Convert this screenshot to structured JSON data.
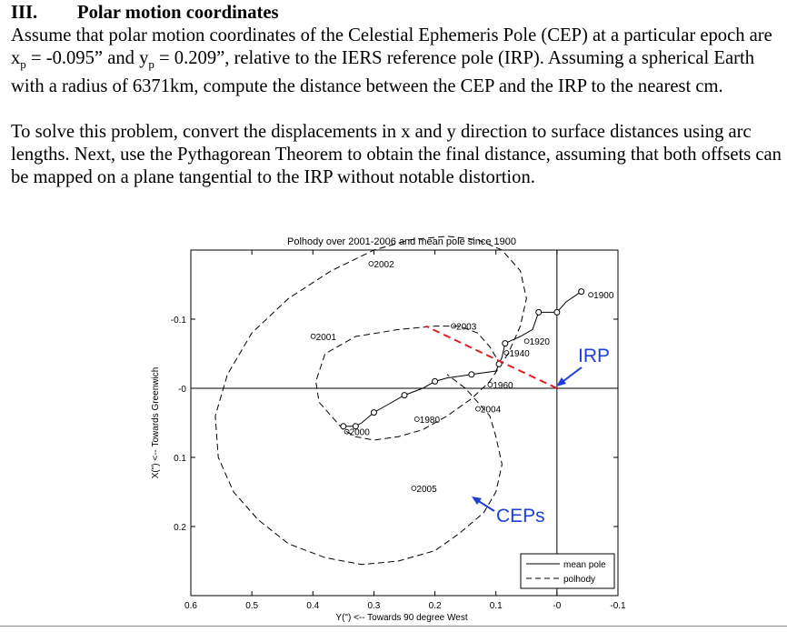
{
  "section": {
    "number": "III.",
    "title": "Polar motion coordinates"
  },
  "paragraph1": {
    "p1": "Assume that polar motion coordinates of the Celestial Ephemeris Pole (CEP) at a particular epoch are x",
    "sub1": "p",
    "p2": " = -0.095” and y",
    "sub2": "p",
    "p3": " = 0.209”, relative to the IERS reference pole (IRP). Assuming a spherical Earth with a radius of 6371km, compute the distance between the CEP and the IRP to the nearest cm."
  },
  "paragraph2": "To solve this problem, convert the displacements in x and y direction to surface distances using arc lengths. Next, use the Pythagorean Theorem to obtain the final distance, assuming that both offsets can be mapped on a plane tangential to the IRP without notable distortion.",
  "chart_data": {
    "type": "line",
    "title": "Polhody over 2001-2006 and mean pole since 1900",
    "xlabel": "Y(\") <-- Towards 90 degree West",
    "ylabel": "X(\") <-- Towards Greenwich",
    "xlim": [
      0.6,
      -0.1
    ],
    "ylim": [
      -0.2,
      0.3
    ],
    "x_tick_labels": [
      "0.6",
      "0.5",
      "0.4",
      "0.3",
      "0.2",
      "0.1",
      "-0",
      "-0.1"
    ],
    "x_tick_values": [
      0.6,
      0.5,
      0.4,
      0.3,
      0.2,
      0.1,
      0.0,
      -0.1
    ],
    "y_tick_labels": [
      "-0.1",
      "-0",
      "0.1",
      "0.2"
    ],
    "y_tick_values": [
      -0.1,
      0.0,
      0.1,
      0.2
    ],
    "grid": false,
    "legend": {
      "position": "bottom-right",
      "entries": [
        "mean pole",
        "polhody"
      ]
    },
    "series": [
      {
        "name": "mean pole",
        "style": "solid",
        "x": [
          -0.04,
          -0.015,
          0.0,
          0.03,
          0.04,
          0.06,
          0.085,
          0.09,
          0.095,
          0.1,
          0.14,
          0.18,
          0.2,
          0.22,
          0.25,
          0.28,
          0.3,
          0.32,
          0.33,
          0.35
        ],
        "y": [
          -0.14,
          -0.125,
          -0.11,
          -0.11,
          -0.085,
          -0.075,
          -0.065,
          -0.045,
          -0.035,
          -0.025,
          -0.02,
          -0.015,
          -0.01,
          0.0,
          0.01,
          0.025,
          0.035,
          0.05,
          0.055,
          0.055
        ],
        "markers_x": [
          -0.04,
          0.0,
          0.03,
          0.085,
          0.095,
          0.14,
          0.2,
          0.25,
          0.3,
          0.33,
          0.35
        ],
        "markers_y": [
          -0.14,
          -0.11,
          -0.11,
          -0.065,
          -0.035,
          -0.02,
          -0.01,
          0.01,
          0.035,
          0.055,
          0.055
        ]
      },
      {
        "name": "polhody",
        "style": "dashed",
        "x": [
          0.1,
          0.11,
          0.13,
          0.16,
          0.2,
          0.26,
          0.33,
          0.38,
          0.395,
          0.39,
          0.37,
          0.35,
          0.33,
          0.3,
          0.26,
          0.22,
          0.18,
          0.14,
          0.11,
          0.08,
          0.06,
          0.05,
          0.06,
          0.09,
          0.13,
          0.18,
          0.24,
          0.3,
          0.37,
          0.44,
          0.5,
          0.54,
          0.56,
          0.555,
          0.53,
          0.49,
          0.44,
          0.38,
          0.32,
          0.26,
          0.2,
          0.16,
          0.12,
          0.1,
          0.09,
          0.1,
          0.11,
          0.13,
          0.15,
          0.18
        ],
        "y": [
          -0.045,
          -0.06,
          -0.08,
          -0.09,
          -0.09,
          -0.085,
          -0.075,
          -0.05,
          -0.01,
          0.02,
          0.04,
          0.06,
          0.07,
          0.075,
          0.07,
          0.06,
          0.04,
          0.015,
          -0.01,
          -0.05,
          -0.09,
          -0.13,
          -0.17,
          -0.2,
          -0.215,
          -0.22,
          -0.215,
          -0.2,
          -0.17,
          -0.13,
          -0.08,
          -0.02,
          0.04,
          0.1,
          0.15,
          0.19,
          0.225,
          0.245,
          0.255,
          0.25,
          0.235,
          0.21,
          0.18,
          0.15,
          0.11,
          0.07,
          0.04,
          0.02,
          0.0,
          -0.02
        ]
      }
    ],
    "point_labels": [
      {
        "text": "1900",
        "x": -0.06,
        "y": -0.13
      },
      {
        "text": "1920",
        "x": 0.045,
        "y": -0.063
      },
      {
        "text": "1940",
        "x": 0.078,
        "y": -0.046
      },
      {
        "text": "1960",
        "x": 0.105,
        "y": 0.0
      },
      {
        "text": "1980",
        "x": 0.225,
        "y": 0.05
      },
      {
        "text": "2000",
        "x": 0.34,
        "y": 0.068
      },
      {
        "text": "2001",
        "x": 0.395,
        "y": -0.07
      },
      {
        "text": "2002",
        "x": 0.3,
        "y": -0.175
      },
      {
        "text": "2003",
        "x": 0.165,
        "y": -0.085
      },
      {
        "text": "2004",
        "x": 0.125,
        "y": 0.035
      },
      {
        "text": "2005",
        "x": 0.23,
        "y": 0.15
      }
    ],
    "annotations": [
      {
        "text": "IRP",
        "color": "#1e3fd4"
      },
      {
        "text": "CEPs",
        "color": "#1e3fd4"
      }
    ],
    "dashed_red_line": {
      "x": [
        0.0,
        0.215
      ],
      "y": [
        0.0,
        -0.09
      ],
      "color": "#e02020"
    }
  },
  "colors": {
    "annotation": "#1e3fd4",
    "red_line": "#e02020",
    "axis": "#000000"
  }
}
